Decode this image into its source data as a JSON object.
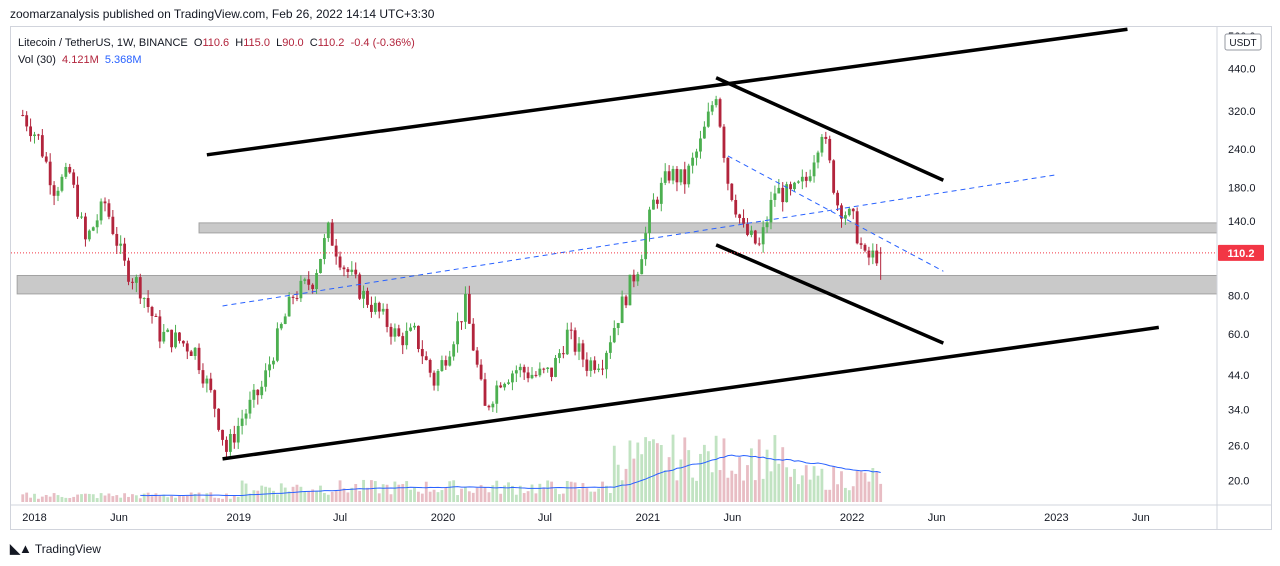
{
  "header": {
    "publisher_text": "zoomarzanalysis published on TradingView.com, Feb 26, 2022 14:14 UTC+3:30"
  },
  "legend": {
    "symbol": "Litecoin / TetherUS, 1W, BINANCE",
    "open_label": "O",
    "open": "110.6",
    "high_label": "H",
    "high": "115.0",
    "low_label": "L",
    "low": "90.0",
    "close_label": "C",
    "close": "110.2",
    "change": "-0.4 (-0.36%)",
    "vol_label": "Vol (30)",
    "vol1": "4.121M",
    "vol2": "5.368M"
  },
  "footer": {
    "brand": "TradingView"
  },
  "chart_data": {
    "type": "candlestick",
    "scale": "log",
    "currency_badge": "USDT",
    "last_price_label": "110.2",
    "last_price": 110.2,
    "y_ticks": [
      20,
      26,
      34,
      44,
      60,
      80,
      110,
      140,
      180,
      240,
      320,
      440,
      560
    ],
    "y_tick_labels": [
      "20.0",
      "26.0",
      "34.0",
      "44.0",
      "60.0",
      "80.0",
      "",
      "140.0",
      "180.0",
      "240.0",
      "320.0",
      "440.0",
      "560.0"
    ],
    "x_ticks": [
      {
        "label": "2018",
        "date": "2018-01-01"
      },
      {
        "label": "Jun",
        "date": "2018-06-01"
      },
      {
        "label": "2019",
        "date": "2019-01-01"
      },
      {
        "label": "Jul",
        "date": "2019-07-01"
      },
      {
        "label": "2020",
        "date": "2020-01-01"
      },
      {
        "label": "Jul",
        "date": "2020-07-01"
      },
      {
        "label": "2021",
        "date": "2021-01-01"
      },
      {
        "label": "Jun",
        "date": "2021-06-01"
      },
      {
        "label": "2022",
        "date": "2022-01-01"
      },
      {
        "label": "Jun",
        "date": "2022-06-01"
      },
      {
        "label": "2023",
        "date": "2023-01-01"
      },
      {
        "label": "Jun",
        "date": "2023-06-01"
      }
    ],
    "x_range": [
      "2017-11-20",
      "2023-10-15"
    ],
    "y_range": [
      17,
      600
    ],
    "price_path": [
      [
        "2017-12-11",
        310
      ],
      [
        "2018-01-08",
        260
      ],
      [
        "2018-02-05",
        180
      ],
      [
        "2018-03-05",
        200
      ],
      [
        "2018-04-02",
        120
      ],
      [
        "2018-05-07",
        160
      ],
      [
        "2018-06-11",
        100
      ],
      [
        "2018-07-09",
        85
      ],
      [
        "2018-08-13",
        60
      ],
      [
        "2018-09-17",
        57
      ],
      [
        "2018-10-15",
        53
      ],
      [
        "2018-11-19",
        35
      ],
      [
        "2018-12-10",
        25
      ],
      [
        "2019-01-07",
        32
      ],
      [
        "2019-02-11",
        40
      ],
      [
        "2019-03-11",
        58
      ],
      [
        "2019-04-08",
        80
      ],
      [
        "2019-05-13",
        90
      ],
      [
        "2019-06-10",
        130
      ],
      [
        "2019-07-08",
        100
      ],
      [
        "2019-08-12",
        80
      ],
      [
        "2019-09-09",
        70
      ],
      [
        "2019-10-14",
        58
      ],
      [
        "2019-11-11",
        60
      ],
      [
        "2019-12-16",
        42
      ],
      [
        "2020-01-13",
        55
      ],
      [
        "2020-02-10",
        75
      ],
      [
        "2020-03-16",
        34
      ],
      [
        "2020-04-13",
        43
      ],
      [
        "2020-05-11",
        46
      ],
      [
        "2020-06-15",
        44
      ],
      [
        "2020-07-13",
        45
      ],
      [
        "2020-08-10",
        60
      ],
      [
        "2020-09-14",
        48
      ],
      [
        "2020-10-12",
        50
      ],
      [
        "2020-11-16",
        75
      ],
      [
        "2020-12-14",
        100
      ],
      [
        "2021-01-11",
        160
      ],
      [
        "2021-02-08",
        200
      ],
      [
        "2021-03-08",
        190
      ],
      [
        "2021-04-05",
        250
      ],
      [
        "2021-05-03",
        370
      ],
      [
        "2021-05-24",
        190
      ],
      [
        "2021-06-21",
        130
      ],
      [
        "2021-07-19",
        115
      ],
      [
        "2021-08-16",
        175
      ],
      [
        "2021-09-13",
        170
      ],
      [
        "2021-10-11",
        190
      ],
      [
        "2021-11-08",
        280
      ],
      [
        "2021-12-06",
        160
      ],
      [
        "2022-01-03",
        140
      ],
      [
        "2022-01-24",
        105
      ],
      [
        "2022-02-21",
        110.2
      ]
    ],
    "volume_series": {
      "name": "Vol (30)",
      "values": []
    },
    "zones": [
      {
        "from": "2018-10-22",
        "to_edge": true,
        "low": 128,
        "high": 138
      },
      {
        "from": "2017-12-01",
        "to_edge": true,
        "low": 81,
        "high": 93
      }
    ],
    "trendlines": [
      {
        "style": "thick",
        "start": [
          "2018-11-05",
          230
        ],
        "end": [
          "2023-05-08",
          590
        ]
      },
      {
        "style": "thick",
        "start": [
          "2018-12-03",
          23.5
        ],
        "end": [
          "2023-07-03",
          63
        ]
      },
      {
        "style": "thick",
        "start": [
          "2021-05-03",
          410
        ],
        "end": [
          "2022-06-13",
          190
        ]
      },
      {
        "style": "thick",
        "start": [
          "2021-05-03",
          117
        ],
        "end": [
          "2022-06-13",
          56
        ]
      },
      {
        "style": "dashed",
        "start": [
          "2018-12-03",
          74
        ],
        "end": [
          "2023-01-01",
          198
        ]
      },
      {
        "style": "dashed",
        "start": [
          "2021-05-24",
          228
        ],
        "end": [
          "2022-06-13",
          96
        ]
      }
    ],
    "colors": {
      "up": "#4caf50",
      "down": "#b2243c",
      "volume_ma": "#2962ff",
      "zone": "#c7c7c7",
      "last_price": "#f23645"
    }
  }
}
